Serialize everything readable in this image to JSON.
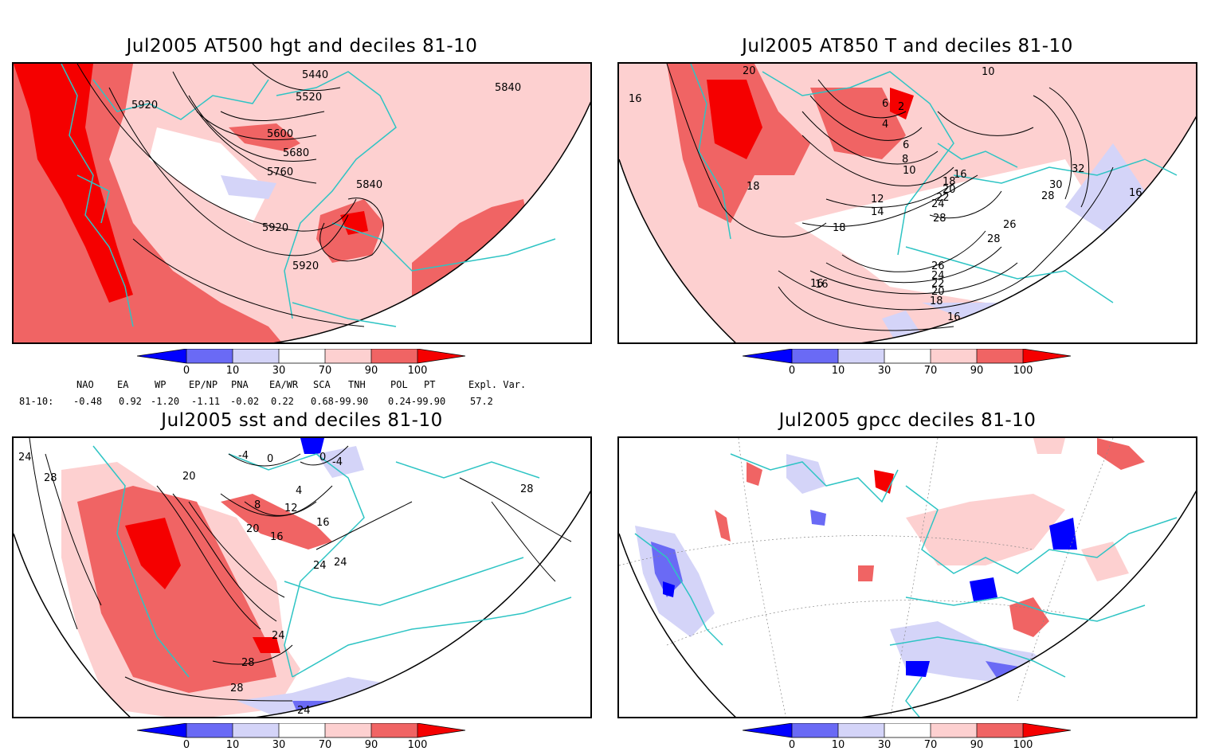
{
  "panels": [
    {
      "title": "Jul2005 AT500 hgt and deciles 81-10",
      "contour_labels": [
        "5440",
        "5520",
        "5600",
        "5680",
        "5760",
        "5840",
        "5920",
        "5920",
        "5920",
        "5840"
      ]
    },
    {
      "title": "Jul2005 AT850 T and deciles 81-10",
      "contour_labels": [
        "20",
        "16",
        "18",
        "18",
        "16",
        "16",
        "6",
        "2",
        "4",
        "6",
        "8",
        "10",
        "10",
        "12",
        "14",
        "16",
        "18",
        "20",
        "22",
        "24",
        "26",
        "28",
        "30",
        "32",
        "28",
        "28",
        "26",
        "24",
        "22",
        "20",
        "18",
        "16",
        "16"
      ]
    },
    {
      "title": "Jul2005 sst and deciles 81-10",
      "contour_labels": [
        "24",
        "28",
        "20",
        "4",
        "8",
        "12",
        "16",
        "16",
        "20",
        "24",
        "24",
        "28",
        "28",
        "24",
        "28",
        "24",
        "-4",
        "-4",
        "0",
        "0"
      ]
    },
    {
      "title": "Jul2005 gpcc deciles 81-10",
      "contour_labels": []
    }
  ],
  "colorbar": {
    "tick_labels": [
      "0",
      "10",
      "30",
      "70",
      "90",
      "100"
    ],
    "colors": [
      "#0000ff",
      "#6a6af5",
      "#d4d4f8",
      "#ffffff",
      "#fdd0d0",
      "#f06464",
      "#f50000"
    ]
  },
  "teleconnection": {
    "headers": [
      "NAO",
      "EA",
      "WP",
      "EP/NP",
      "PNA",
      "EA/WR",
      "SCA",
      "TNH",
      "POL",
      "PT",
      "Expl. Var."
    ],
    "row_label": "81-10:",
    "values": [
      "-0.48",
      "0.92",
      "-1.20",
      "-1.11",
      "-0.02",
      "0.22",
      "0.68-99.90",
      "",
      "0.24-99.90",
      "",
      "57.2"
    ]
  },
  "legend_colors": {
    "coastline": "#2ec4c4",
    "strong_pos": "#f50000",
    "pos": "#f06464",
    "weak_pos": "#fdd0d0",
    "weak_neg": "#d4d4f8",
    "neg": "#6a6af5",
    "strong_neg": "#0000ff"
  }
}
